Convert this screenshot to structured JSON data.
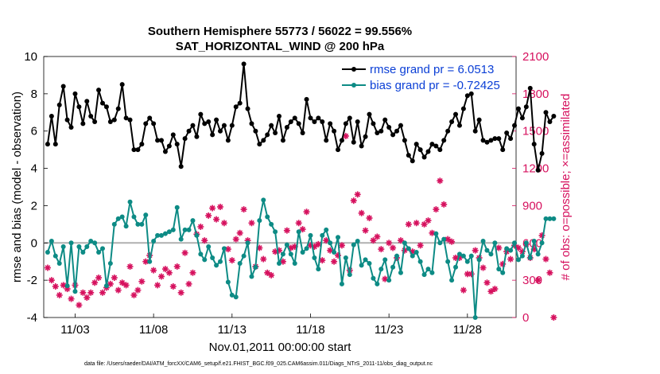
{
  "chart_data": {
    "type": "line",
    "title": "Southern Hemisphere 55773 / 56022 = 99.556%",
    "subtitle": "SAT_HORIZONTAL_WIND @ 200 hPa",
    "xlabel": "Nov.01,2011 00:00:00 start",
    "ylabel": "rmse and bias (model - observation)",
    "y2label": "# of obs: o=possible; ×=assimilated",
    "x_tick_labels": [
      "11/03",
      "11/08",
      "11/13",
      "11/18",
      "11/23",
      "11/28"
    ],
    "x_tick_days": [
      3,
      8,
      13,
      18,
      23,
      28
    ],
    "xlim": [
      1.0,
      31.1
    ],
    "ylim": [
      -4,
      10
    ],
    "y_ticks": [
      -4,
      -2,
      0,
      2,
      4,
      6,
      8,
      10
    ],
    "y2lim": [
      0,
      2100
    ],
    "y2_ticks": [
      0,
      300,
      600,
      900,
      1200,
      1500,
      1800,
      2100
    ],
    "legend_position": "top-right",
    "footnote": "data file: /Users/raeder/DAI/ATM_forcXX/CAM6_setup/f.e21.FHIST_BGC.f09_025.CAM6assim.011/Diags_NTrS_2011-11/obs_diag_output.nc",
    "series": [
      {
        "name": "rmse",
        "legend": "rmse grand pr = 6.0513",
        "color": "#000000",
        "x_start": 1.25,
        "x_step": 0.25,
        "values": [
          5.3,
          6.8,
          5.3,
          7.4,
          8.4,
          6.6,
          6.2,
          8.0,
          7.3,
          6.4,
          7.6,
          6.8,
          6.5,
          8.2,
          7.5,
          7.3,
          6.5,
          6.6,
          7.2,
          8.5,
          6.7,
          6.6,
          5.0,
          5.0,
          5.3,
          6.4,
          6.7,
          6.4,
          5.5,
          5.5,
          4.9,
          5.2,
          5.8,
          5.3,
          4.1,
          5.6,
          6.0,
          6.3,
          5.7,
          6.9,
          6.4,
          6.5,
          5.8,
          6.6,
          6.0,
          6.3,
          5.5,
          6.3,
          7.3,
          7.5,
          9.6,
          7.2,
          6.4,
          6.0,
          5.3,
          5.5,
          5.8,
          6.3,
          5.9,
          6.8,
          5.5,
          6.2,
          6.5,
          6.7,
          6.4,
          5.9,
          7.7,
          6.7,
          6.5,
          6.7,
          6.5,
          5.5,
          6.4,
          6.0,
          5.0,
          5.5,
          6.4,
          6.7,
          5.4,
          6.5,
          5.2,
          5.7,
          6.9,
          6.4,
          5.9,
          6.0,
          6.6,
          6.2,
          5.8,
          6.0,
          6.3,
          5.5,
          4.7,
          4.4,
          5.3,
          5.0,
          4.6,
          4.9,
          5.3,
          5.2,
          5.0,
          5.5,
          6.0,
          6.5,
          6.9,
          6.3,
          7.2,
          7.9,
          8.0,
          6.0,
          6.6,
          5.5,
          5.4,
          5.5,
          5.6,
          5.6,
          5.0,
          5.9,
          5.6,
          6.3,
          7.2,
          6.7,
          7.3,
          8.3,
          5.3,
          3.9,
          4.8,
          7.0,
          6.5,
          6.8
        ]
      },
      {
        "name": "bias",
        "legend": "bias grand pr = -0.72425",
        "color": "#0d8b85",
        "x_start": 1.25,
        "x_step": 0.25,
        "values": [
          -0.5,
          0.1,
          -0.7,
          -1.1,
          -0.2,
          -2.3,
          0.0,
          -2.6,
          -0.2,
          -0.5,
          -0.2,
          0.1,
          0.0,
          -0.5,
          -0.3,
          -2.3,
          -1.1,
          1.0,
          1.3,
          1.4,
          0.9,
          2.2,
          1.4,
          1.0,
          1.0,
          1.5,
          -1.0,
          0.1,
          0.4,
          0.4,
          0.5,
          0.6,
          0.7,
          1.9,
          0.2,
          0.7,
          0.7,
          1.2,
          0.4,
          -0.6,
          -0.9,
          -0.2,
          -0.8,
          -1.2,
          -1.0,
          -0.3,
          -2.1,
          -2.8,
          -2.9,
          -1.1,
          -0.7,
          0.0,
          -1.8,
          -1.3,
          1.2,
          2.3,
          1.4,
          1.0,
          0.6,
          -1.1,
          -0.6,
          -0.1,
          -0.6,
          -1.1,
          0.6,
          -0.5,
          -0.3,
          0.4,
          -0.8,
          -1.4,
          0.4,
          0.7,
          0.0,
          -0.5,
          0.3,
          -2.2,
          -0.8,
          -1.7,
          -0.1,
          0.1,
          -1.2,
          -0.9,
          -1.1,
          -1.9,
          -2.2,
          -1.4,
          -0.9,
          -2.0,
          -1.3,
          -0.7,
          -1.6,
          0.0,
          -0.3,
          -0.7,
          -0.5,
          -1.0,
          -1.7,
          -1.4,
          -1.6,
          0.5,
          0.0,
          0.2,
          -1.0,
          -2.0,
          -1.3,
          -0.6,
          -0.7,
          -1.0,
          -0.7,
          -4.0,
          -0.9,
          0.1,
          -0.4,
          -0.6,
          0.0,
          -1.4,
          -1.6,
          -0.3,
          -0.4,
          0.0,
          -0.9,
          -0.7,
          0.0,
          -0.8,
          0.1,
          -0.6,
          0.0,
          1.3,
          1.3,
          1.3
        ]
      },
      {
        "name": "obs_count",
        "legend": "",
        "axis": "right",
        "color": "#d6115e",
        "marker": "asterisk",
        "x_start": 1.25,
        "x_step": 0.25,
        "values": [
          400,
          300,
          250,
          180,
          260,
          230,
          150,
          260,
          100,
          200,
          160,
          200,
          280,
          320,
          200,
          240,
          270,
          320,
          220,
          280,
          260,
          410,
          180,
          220,
          290,
          450,
          500,
          380,
          260,
          330,
          390,
          360,
          250,
          410,
          200,
          520,
          270,
          360,
          670,
          730,
          620,
          820,
          880,
          790,
          890,
          760,
          550,
          460,
          630,
          680,
          870,
          620,
          760,
          410,
          560,
          470,
          360,
          340,
          530,
          540,
          450,
          700,
          560,
          570,
          760,
          710,
          850,
          580,
          570,
          590,
          460,
          620,
          540,
          450,
          500,
          580,
          1460,
          380,
          940,
          990,
          840,
          700,
          800,
          620,
          650,
          550,
          310,
          600,
          560,
          480,
          620,
          540,
          750,
          530,
          760,
          580,
          750,
          780,
          680,
          870,
          1100,
          910,
          630,
          610,
          480,
          480,
          220,
          350,
          350,
          540,
          480,
          400,
          280,
          210,
          230,
          560,
          430,
          530,
          470,
          580,
          560,
          530,
          590,
          480,
          550,
          300,
          660,
          470,
          360,
          0
        ]
      }
    ]
  }
}
